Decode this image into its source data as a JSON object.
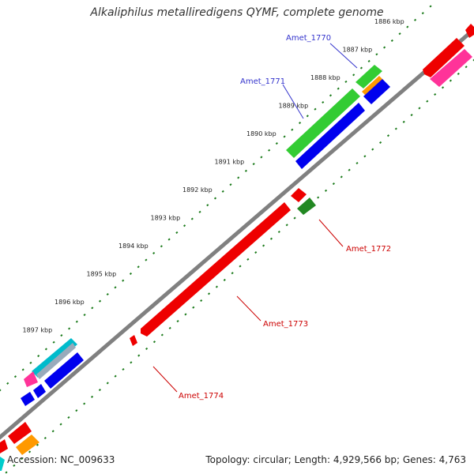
{
  "title": "Alkaliphilus metalliredigens QYMF, complete genome",
  "footer": {
    "accession": "Accession: NC_009633",
    "summary": "Topology: circular; Length: 4,929,566 bp; Genes: 4,763"
  },
  "ticks": [
    "1886 kbp",
    "1887 kbp",
    "1888 kbp",
    "1889 kbp",
    "1890 kbp",
    "1891 kbp",
    "1892 kbp",
    "1893 kbp",
    "1894 kbp",
    "1895 kbp",
    "1896 kbp",
    "1897 kbp"
  ],
  "genes": [
    {
      "id": "Amet_1770",
      "strand": "forward",
      "color": "#3333cc"
    },
    {
      "id": "Amet_1771",
      "strand": "forward",
      "color": "#3333cc"
    },
    {
      "id": "Amet_1772",
      "strand": "reverse",
      "color": "#cc0000"
    },
    {
      "id": "Amet_1773",
      "strand": "reverse",
      "color": "#cc0000"
    },
    {
      "id": "Amet_1774",
      "strand": "reverse",
      "color": "#cc0000"
    }
  ],
  "colors": {
    "backbone": "#808080",
    "tick_dots": "#1a7a1a",
    "green": "#33cc33",
    "blue": "#0000ee",
    "red": "#ee0000",
    "orange": "#ff9900",
    "pink": "#ff3399",
    "cyan": "#00cccc",
    "darkgreen": "#228822"
  }
}
